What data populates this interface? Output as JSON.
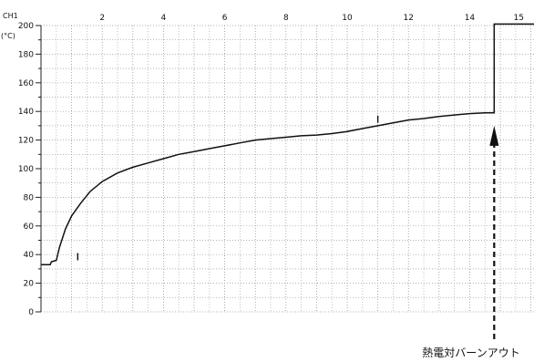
{
  "chart_data": {
    "type": "line",
    "channel_label": "CH1",
    "y_unit": "(°C)",
    "x_tick_labels": [
      {
        "x": 2,
        "label": "2"
      },
      {
        "x": 4,
        "label": "4"
      },
      {
        "x": 6,
        "label": "6"
      },
      {
        "x": 8,
        "label": "8"
      },
      {
        "x": 10,
        "label": "10"
      },
      {
        "x": 12,
        "label": "12"
      },
      {
        "x": 14,
        "label": "14"
      },
      {
        "x": 15.6,
        "label": "15"
      }
    ],
    "y_ticks": [
      0,
      20,
      40,
      60,
      80,
      100,
      120,
      140,
      160,
      180,
      200
    ],
    "xlim": [
      0,
      16.1
    ],
    "ylim": [
      0,
      200
    ],
    "grid": true,
    "series": [
      {
        "values": [
          [
            0.0,
            33
          ],
          [
            0.3,
            33
          ],
          [
            0.34,
            35
          ],
          [
            0.5,
            36
          ],
          [
            0.6,
            45
          ],
          [
            0.8,
            58
          ],
          [
            1.0,
            67
          ],
          [
            1.3,
            76
          ],
          [
            1.6,
            84
          ],
          [
            2.0,
            91
          ],
          [
            2.5,
            97
          ],
          [
            3.0,
            101
          ],
          [
            3.5,
            104
          ],
          [
            4.0,
            107
          ],
          [
            4.5,
            110
          ],
          [
            5.0,
            112
          ],
          [
            5.5,
            114
          ],
          [
            6.0,
            116
          ],
          [
            6.5,
            118
          ],
          [
            7.0,
            120
          ],
          [
            7.5,
            121
          ],
          [
            8.0,
            122
          ],
          [
            8.5,
            123
          ],
          [
            9.0,
            123.5
          ],
          [
            9.5,
            124.5
          ],
          [
            10.0,
            126
          ],
          [
            10.5,
            128
          ],
          [
            11.0,
            130
          ],
          [
            11.5,
            132
          ],
          [
            12.0,
            134
          ],
          [
            12.5,
            135
          ],
          [
            13.0,
            136.5
          ],
          [
            13.5,
            137.5
          ],
          [
            14.0,
            138.5
          ],
          [
            14.5,
            139
          ],
          [
            14.8,
            139
          ],
          [
            14.8,
            201
          ],
          [
            16.1,
            201
          ]
        ]
      }
    ],
    "markers": [
      {
        "x": 1.2,
        "y": 36
      },
      {
        "x": 11.0,
        "y": 132
      }
    ],
    "annotation": {
      "text": "熱電対バーンアウト",
      "arrow_x": 14.8,
      "arrow_tip_y": 130
    }
  }
}
